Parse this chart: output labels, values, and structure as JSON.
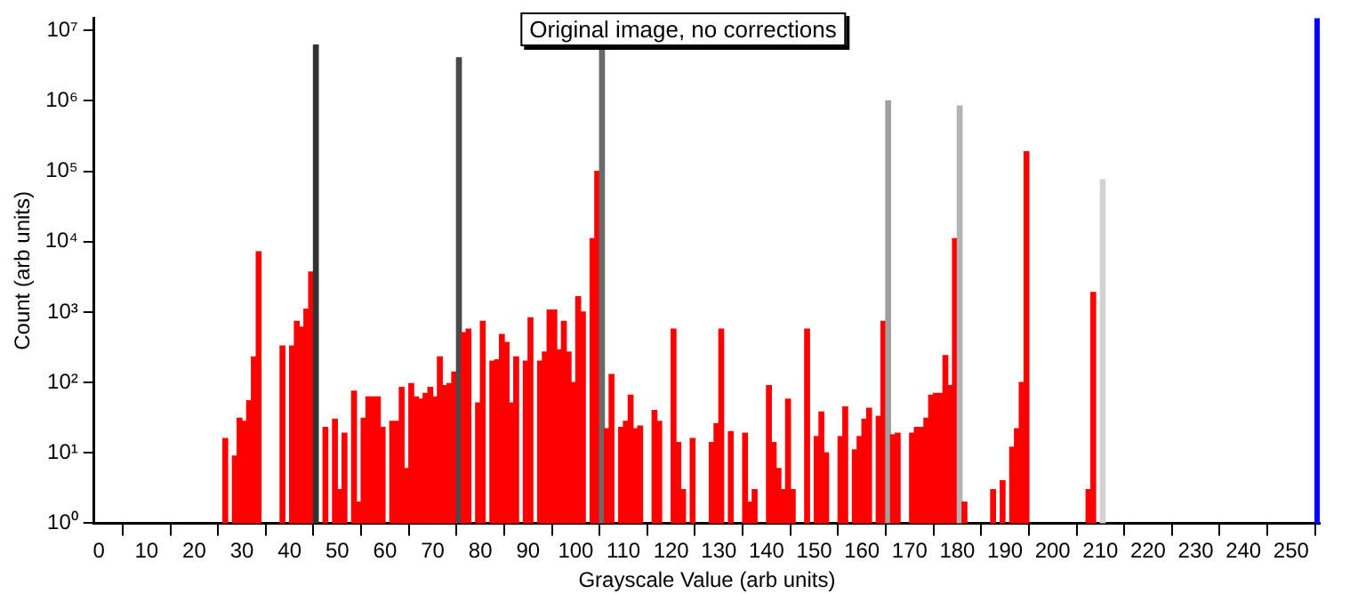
{
  "chart_data": {
    "type": "histogram",
    "xlabel": "Grayscale Value (arb units)",
    "ylabel": "Count (arb units)",
    "annotations": [
      "Original image, no corrections"
    ],
    "bins": [
      0,
      1,
      2,
      3,
      4,
      5,
      6,
      7,
      8,
      9,
      10,
      11,
      12,
      13,
      14,
      15,
      16,
      17,
      18,
      19,
      20,
      21,
      22,
      23,
      24,
      25,
      26,
      27,
      28,
      29,
      30,
      31,
      32,
      33,
      34,
      35,
      36,
      37,
      38,
      39,
      40,
      41,
      42,
      43,
      44,
      45,
      46,
      47,
      48,
      49,
      50,
      51,
      52,
      53,
      54,
      55,
      56,
      57,
      58,
      59,
      60,
      61,
      62,
      63,
      64,
      65,
      66,
      67,
      68,
      69,
      70,
      71,
      72,
      73,
      74,
      75,
      76,
      77,
      78,
      79,
      80,
      81,
      82,
      83,
      84,
      85,
      86,
      87,
      88,
      89,
      90,
      91,
      92,
      93,
      94,
      95,
      96,
      97,
      98,
      99,
      100,
      101,
      102,
      103,
      104,
      105,
      106,
      107,
      108,
      109,
      110,
      111,
      112,
      113,
      114,
      115,
      116,
      117,
      118,
      119,
      120,
      121,
      122,
      123,
      124,
      125,
      126,
      127,
      128,
      129,
      130,
      131,
      132,
      133,
      134,
      135,
      136,
      137,
      138,
      139,
      140,
      141,
      142,
      143,
      144,
      145,
      146,
      147,
      148,
      149,
      150,
      151,
      152,
      153,
      154,
      155,
      156,
      157,
      158,
      159,
      160,
      161,
      162,
      163,
      164,
      165,
      166,
      167,
      168,
      169,
      170,
      171,
      172,
      173,
      174,
      175,
      176,
      177,
      178,
      179,
      180,
      181,
      182,
      183,
      184,
      185,
      186,
      187,
      188,
      189,
      190,
      191,
      192,
      193,
      194,
      195,
      196,
      197,
      198,
      199,
      200,
      201,
      202,
      203,
      204,
      205,
      206,
      207,
      208,
      209,
      210,
      211,
      212,
      213,
      214,
      215,
      216,
      217,
      218,
      219,
      220,
      221,
      222,
      223,
      224,
      225,
      226,
      227,
      228,
      229,
      230,
      231,
      232,
      233,
      234,
      235,
      236,
      237,
      238,
      239,
      240,
      241,
      242,
      243,
      244,
      245,
      246,
      247,
      248,
      249,
      250,
      251,
      252,
      253,
      254,
      255,
      256
    ],
    "values": [
      null,
      null,
      null,
      null,
      null,
      null,
      null,
      null,
      null,
      null,
      null,
      null,
      null,
      null,
      null,
      null,
      null,
      null,
      null,
      null,
      null,
      null,
      null,
      null,
      null,
      null,
      16,
      null,
      9,
      31,
      28,
      55,
      230,
      7200,
      null,
      null,
      null,
      null,
      330,
      null,
      330,
      740,
      610,
      1100,
      3700,
      6200000,
      null,
      23,
      null,
      30,
      3,
      19,
      null,
      75,
      2,
      31,
      62,
      62,
      62,
      23,
      null,
      28,
      28,
      85,
      6,
      96,
      62,
      58,
      70,
      85,
      62,
      230,
      90,
      96,
      140,
      4100000,
      510,
      570,
      null,
      51,
      740,
      null,
      200,
      210,
      480,
      370,
      51,
      230,
      null,
      200,
      830,
      null,
      200,
      270,
      1070,
      1070,
      290,
      740,
      270,
      100,
      1650,
      1000,
      null,
      11000,
      100000,
      5400000,
      22,
      130,
      null,
      23,
      28,
      66,
      22,
      24,
      null,
      null,
      40,
      28,
      null,
      null,
      570,
      14,
      3,
      null,
      16,
      null,
      null,
      null,
      14,
      26,
      570,
      null,
      20,
      null,
      null,
      19,
      2,
      3,
      null,
      null,
      90,
      14,
      6,
      3,
      58,
      3,
      null,
      null,
      570,
      null,
      17,
      38,
      10,
      null,
      null,
      17,
      45,
      null,
      11,
      17,
      30,
      43,
      null,
      33,
      740,
      1000000,
      18,
      19,
      null,
      null,
      19,
      23,
      23,
      31,
      66,
      70,
      70,
      240,
      90,
      11000,
      850000,
      2,
      null,
      null,
      null,
      null,
      null,
      3,
      null,
      4,
      null,
      12,
      22,
      100,
      190000,
      null,
      null,
      null,
      null,
      null,
      null,
      null,
      null,
      null,
      null,
      null,
      null,
      3,
      1900,
      null,
      76000,
      null,
      null,
      null,
      null,
      null,
      null,
      null,
      null,
      null,
      null,
      null,
      null,
      null,
      null,
      null,
      null,
      null,
      null,
      null,
      null,
      null,
      null,
      null,
      null,
      null,
      null,
      null,
      null,
      null,
      null,
      null,
      null,
      null,
      null,
      null,
      null,
      null,
      null,
      null,
      null,
      null,
      null,
      null,
      null,
      15000000
    ],
    "colors": [
      null,
      null,
      null,
      null,
      null,
      null,
      null,
      null,
      null,
      null,
      null,
      null,
      null,
      null,
      null,
      null,
      null,
      null,
      null,
      null,
      null,
      null,
      null,
      null,
      null,
      null,
      "#ff0000",
      null,
      "#ff0000",
      "#ff0000",
      "#ff0000",
      "#ff0000",
      "#ff0000",
      "#ff0000",
      null,
      null,
      null,
      null,
      "#ff0000",
      null,
      "#ff0000",
      "#ff0000",
      "#ff0000",
      "#ff0000",
      "#ff0000",
      "#333333",
      null,
      "#ff0000",
      null,
      "#ff0000",
      "#ff0000",
      "#ff0000",
      null,
      "#ff0000",
      "#ff0000",
      "#ff0000",
      "#ff0000",
      "#ff0000",
      "#ff0000",
      "#ff0000",
      null,
      "#ff0000",
      "#ff0000",
      "#ff0000",
      "#ff0000",
      "#ff0000",
      "#ff0000",
      "#ff0000",
      "#ff0000",
      "#ff0000",
      "#ff0000",
      "#ff0000",
      "#ff0000",
      "#ff0000",
      "#ff0000",
      "#494949",
      "#ff0000",
      "#ff0000",
      null,
      "#ff0000",
      "#ff0000",
      null,
      "#ff0000",
      "#ff0000",
      "#ff0000",
      "#ff0000",
      "#ff0000",
      "#ff0000",
      null,
      "#ff0000",
      "#ff0000",
      null,
      "#ff0000",
      "#ff0000",
      "#ff0000",
      "#ff0000",
      "#ff0000",
      "#ff0000",
      "#ff0000",
      "#ff0000",
      "#ff0000",
      "#ff0000",
      null,
      "#ff0000",
      "#ff0000",
      "#6a6a6a",
      "#ff0000",
      "#ff0000",
      null,
      "#ff0000",
      "#ff0000",
      "#ff0000",
      "#ff0000",
      "#ff0000",
      null,
      null,
      "#ff0000",
      "#ff0000",
      null,
      null,
      "#ff0000",
      "#ff0000",
      "#ff0000",
      null,
      "#ff0000",
      null,
      null,
      null,
      "#ff0000",
      "#ff0000",
      "#ff0000",
      null,
      "#ff0000",
      null,
      null,
      "#ff0000",
      "#ff0000",
      "#ff0000",
      null,
      null,
      "#ff0000",
      "#ff0000",
      "#ff0000",
      "#ff0000",
      "#ff0000",
      "#ff0000",
      null,
      null,
      "#ff0000",
      null,
      "#ff0000",
      "#ff0000",
      "#ff0000",
      null,
      null,
      "#ff0000",
      "#ff0000",
      null,
      "#ff0000",
      "#ff0000",
      "#ff0000",
      "#ff0000",
      null,
      "#ff0000",
      "#ff0000",
      "#a0a0a0",
      "#ff0000",
      "#ff0000",
      null,
      null,
      "#ff0000",
      "#ff0000",
      "#ff0000",
      "#ff0000",
      "#ff0000",
      "#ff0000",
      "#ff0000",
      "#ff0000",
      "#ff0000",
      "#ff0000",
      "#b4b4b4",
      "#ff0000",
      null,
      null,
      null,
      null,
      null,
      "#ff0000",
      null,
      "#ff0000",
      null,
      "#ff0000",
      "#ff0000",
      "#ff0000",
      "#ff0000",
      null,
      null,
      null,
      null,
      null,
      null,
      null,
      null,
      null,
      null,
      null,
      null,
      "#ff0000",
      "#ff0000",
      null,
      "#d2d2d2",
      null,
      null,
      null,
      null,
      null,
      null,
      null,
      null,
      null,
      null,
      null,
      null,
      null,
      null,
      null,
      null,
      null,
      null,
      null,
      null,
      null,
      null,
      null,
      null,
      null,
      null,
      null,
      null,
      null,
      null,
      null,
      null,
      null,
      null,
      null,
      null,
      null,
      null,
      null,
      null,
      null,
      null,
      null,
      null,
      "#0000ff"
    ],
    "log": "y",
    "xlim": [
      -1,
      256
    ],
    "xticks": [
      0,
      10,
      20,
      30,
      40,
      50,
      60,
      70,
      80,
      90,
      100,
      110,
      120,
      130,
      140,
      150,
      160,
      170,
      180,
      190,
      200,
      210,
      220,
      230,
      240,
      250
    ],
    "ylim": [
      1,
      15000000
    ],
    "yticks": [
      {
        "value": 1,
        "label": "10⁰"
      },
      {
        "value": 10,
        "label": "10¹"
      },
      {
        "value": 100,
        "label": "10²"
      },
      {
        "value": 1000,
        "label": "10³"
      },
      {
        "value": 10000,
        "label": "10⁴"
      },
      {
        "value": 100000,
        "label": "10⁵"
      },
      {
        "value": 1000000,
        "label": "10⁶"
      },
      {
        "value": 10000000,
        "label": "10⁷"
      }
    ],
    "grid": false,
    "legend": false
  }
}
